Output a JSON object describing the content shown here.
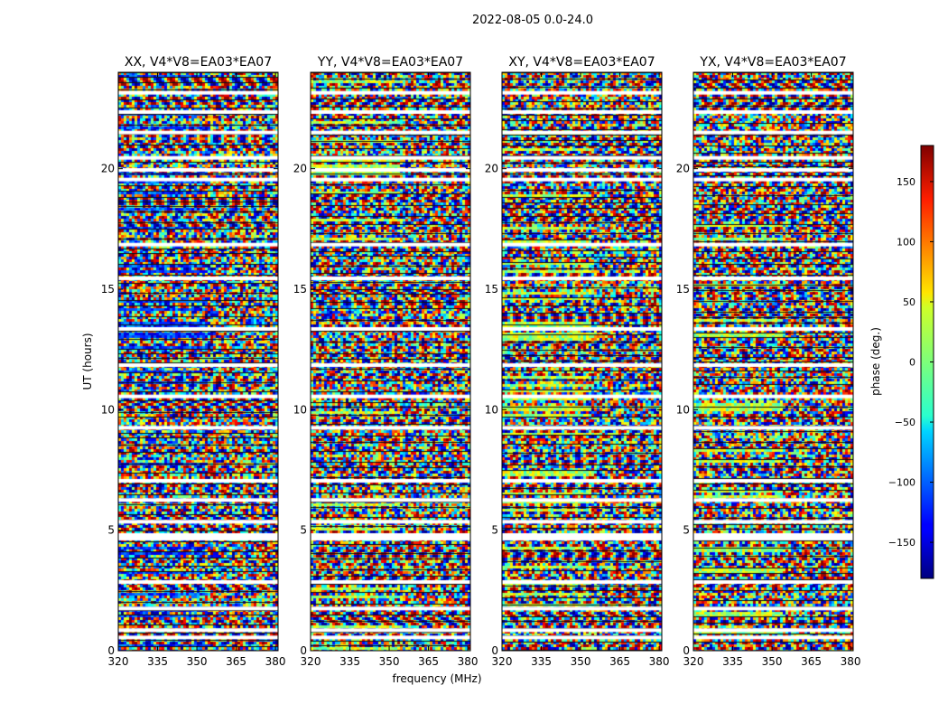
{
  "figure": {
    "suptitle": "2022-08-05 0.0-24.0"
  },
  "chart_data": {
    "type": "heatmap",
    "xlabel": "frequency (MHz)",
    "ylabel": "UT (hours)",
    "xlim": [
      320,
      381
    ],
    "ylim": [
      0,
      24
    ],
    "x_ticks": [
      320,
      335,
      350,
      365,
      380
    ],
    "y_ticks": [
      0,
      5,
      10,
      15,
      20
    ],
    "panels": [
      {
        "title": "XX, V4*V8=EA03*EA07"
      },
      {
        "title": "YY, V4*V8=EA03*EA07"
      },
      {
        "title": "XY, V4*V8=EA03*EA07"
      },
      {
        "title": "YX, V4*V8=EA03*EA07"
      }
    ],
    "colorbar": {
      "label": "phase (deg.)",
      "range": [
        -180,
        180
      ],
      "ticks": [
        -150,
        -100,
        -50,
        0,
        50,
        100,
        150
      ],
      "colormap": "jet"
    },
    "flagged_ut_rows": [
      0.55,
      0.85,
      1.75,
      2.85,
      4.65,
      4.8,
      5.35,
      6.25,
      7.05,
      9.25,
      10.55,
      11.85,
      13.35,
      15.45,
      16.85,
      19.55,
      19.95,
      20.45,
      21.5,
      22.35,
      23.15
    ]
  }
}
